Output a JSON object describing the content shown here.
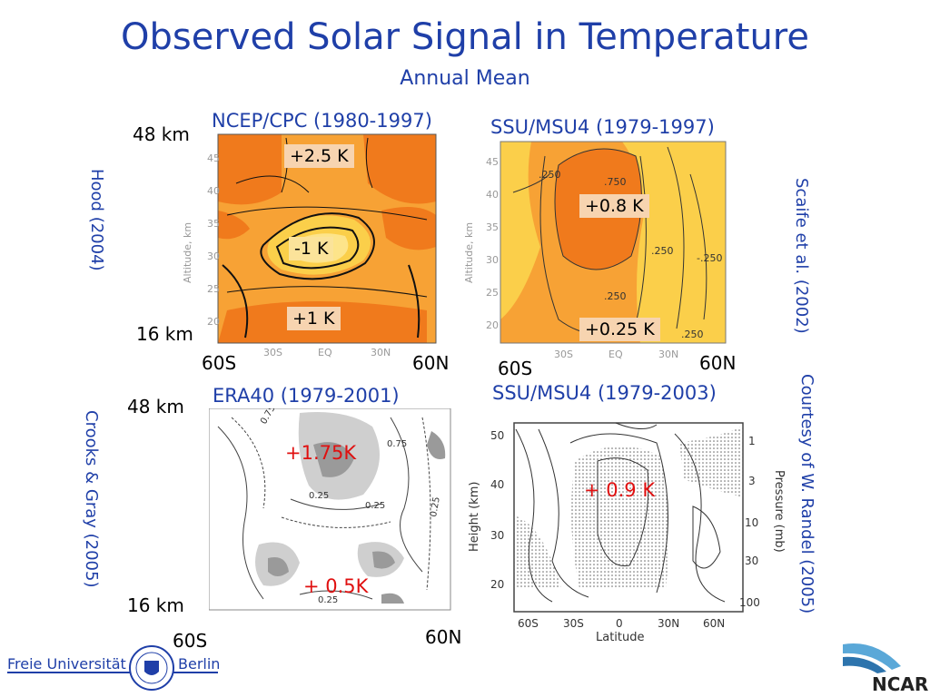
{
  "slide": {
    "title": "Observed Solar Signal in Temperature",
    "subtitle": "Annual Mean"
  },
  "panels": {
    "ncep": {
      "label": "NCEP/CPC (1980-1997)",
      "top_km": "48 km",
      "bottom_km": "16 km",
      "left_lat": "60S",
      "right_lat": "60N",
      "credit": "Hood (2004)",
      "values": [
        "+2.5 K",
        "-1 K",
        "+1 K"
      ],
      "y_axis_label": "Altitude, km",
      "y_ticks": [
        "45",
        "40",
        "35",
        "30",
        "25",
        "20"
      ],
      "x_ticks": [
        "30S",
        "EQ",
        "30N"
      ]
    },
    "ssu1": {
      "label": "SSU/MSU4 (1979-1997)",
      "left_lat": "60S",
      "right_lat": "60N",
      "credit": "Scaife et al.  (2002)",
      "values": [
        "+0.8 K",
        "+0.25 K"
      ],
      "y_axis_label": "Altitude, km",
      "y_ticks": [
        "45",
        "40",
        "35",
        "30",
        "25",
        "20"
      ],
      "x_ticks": [
        "60S",
        "30S",
        "EQ",
        "30N",
        "60N"
      ],
      "contour_labels": [
        ".250",
        ".750",
        ".250",
        ".250",
        ".250",
        "-.250"
      ]
    },
    "era40": {
      "label": "ERA40 (1979-2001)",
      "top_km": "48 km",
      "bottom_km": "16 km",
      "left_lat": "60S",
      "right_lat": "60N",
      "credit": "Crooks & Gray (2005)",
      "values": [
        "+1.75K",
        "+ 0.5K"
      ],
      "contour_labels": [
        "0.75",
        "0.25",
        "0.25",
        "0.25"
      ]
    },
    "ssu2": {
      "label": "SSU/MSU4 (1979-2003)",
      "credit": "Courtesy of W. Randel (2005)",
      "values": [
        "+ 0.9 K"
      ],
      "y_axis_label": "Height (km)",
      "y_ticks": [
        "50",
        "40",
        "30",
        "20"
      ],
      "x_ticks": [
        "60S",
        "30S",
        "0",
        "30N",
        "60N"
      ],
      "x_axis_label": "Latitude",
      "right_axis_label": "Pressure (mb)",
      "right_ticks": [
        "1",
        "3",
        "10",
        "30",
        "100"
      ]
    }
  },
  "logos": {
    "fu_left": "Freie Universität",
    "fu_right": "Berlin",
    "ncar": "NCAR"
  },
  "colors": {
    "title": "#1f3fa8",
    "orange_dark": "#f07a1c",
    "orange_mid": "#f7a235",
    "orange_light": "#fbcf4a",
    "highlight": "#e01010"
  }
}
